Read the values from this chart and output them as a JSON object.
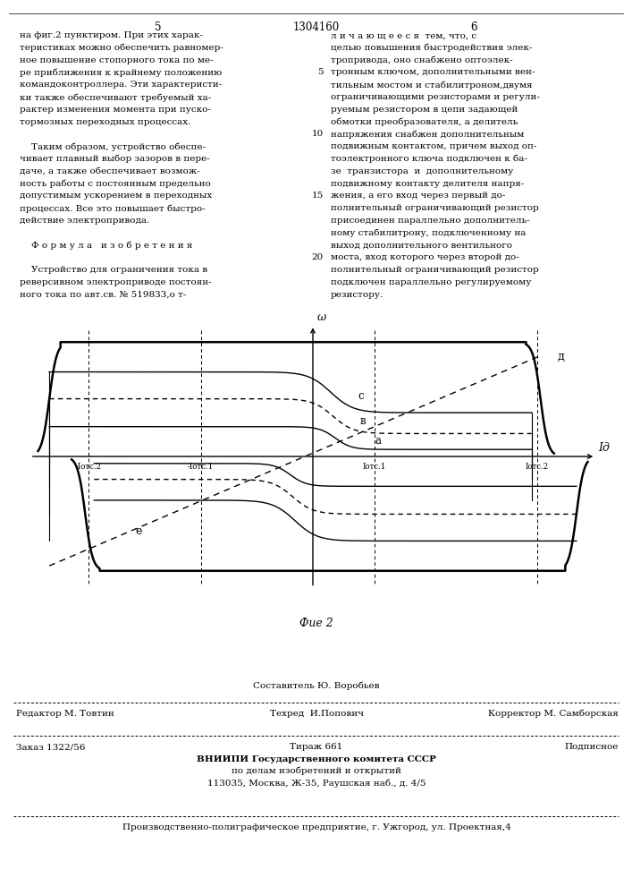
{
  "title_page_num_left": "5",
  "title_page_center": "1304160",
  "title_page_num_right": "6",
  "text_left_col": [
    "на фиг.2 пунктиром. При этих харак-",
    "теристиках можно обеспечить равномер-",
    "ное повышение стопорного тока по ме-",
    "ре приближения к крайнему положению",
    "командоконтроллера. Эти характеристи-",
    "ки также обеспечивают требуемый ха-",
    "рактер изменения момента при пуско-",
    "тормозных переходных процессах.",
    "",
    "    Таким образом, устройство обеспе-",
    "чивает плавный выбор зазоров в пере-",
    "даче, а также обеспечивает возмож-",
    "ность работы с постоянным предельно",
    "допустимым ускорением в переходных",
    "процессах. Все это повышает быстро-",
    "действие электропривода.",
    "",
    "    Ф о р м у л а   и з о б р е т е н и я",
    "",
    "    Устройство для ограничения тока в",
    "реверсивном электроприводе постоян-",
    "ного тока по авт.св. № 519833,о т-"
  ],
  "text_right_col": [
    "л и ч а ю щ е е с я  тем, что, с",
    "целью повышения быстродействия элек-",
    "тропривода, оно снабжено оптоэлек-",
    "тронным ключом, дополнительными вен-",
    "тильным мостом и стабилитроном,двумя",
    "ограничивающими резисторами и регули-",
    "руемым резистором в цепи задающей",
    "обмотки преобразователя, а делитель",
    "напряжения снабжен дополнительным",
    "подвижным контактом, причем выход оп-",
    "тоэлектронного ключа подключен к ба-",
    "зе  транзистора  и  дополнительному",
    "подвижному контакту делителя напря-",
    "жения, а его вход через первый до-",
    "полнительный ограничивающий резистор",
    "присоединен параллельно дополнитель-",
    "ному стабилитрону, подключенному на",
    "выход дополнительного вентильного",
    "моста, вход которого через второй до-",
    "полнительный ограничивающий резистор",
    "подключен параллельно регулируемому",
    "резистору."
  ],
  "line_num_map": {
    "3": "5",
    "8": "10",
    "13": "15",
    "18": "20"
  },
  "fig_label": "Фие 2",
  "xlabel": "Iд",
  "ylabel": "ω",
  "x_ticks": [
    "-Iотс.2",
    "-Iотс.1",
    "Iотс.1",
    "Iотс.2"
  ],
  "x_tick_positions": [
    -2.0,
    -1.0,
    0.55,
    2.0
  ],
  "footer_line1": "Составитель Ю. Воробьев",
  "footer_line2_left": "Редактор М. Товтин",
  "footer_line2_mid": "Техред  И.Попович",
  "footer_line2_right": "Корректор М. Самборская",
  "footer_line3_left": "Заказ 1322/56",
  "footer_line3_mid": "Тираж 661",
  "footer_line3_right": "Подписное",
  "footer_line4": "ВНИИПИ Государственного комитета СССР",
  "footer_line5": "по делам изобретений и открытий",
  "footer_line6": "113035, Москва, Ж-35, Раушская наб., д. 4/5",
  "footer_line7": "Производственно-полиграфическое предприятие, г. Ужгород, ул. Проектная,4",
  "bg_color": "#ffffff",
  "text_color": "#000000"
}
